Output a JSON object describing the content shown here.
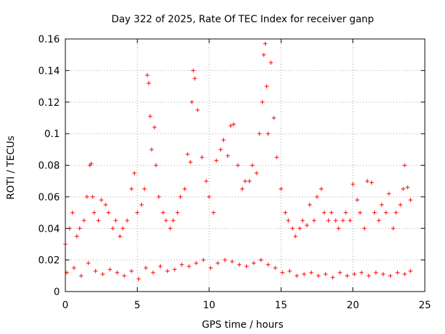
{
  "chart_data": {
    "type": "scatter",
    "title": "Day 322 of 2025, Rate Of TEC Index for receiver ganp",
    "xlabel": "GPS time / hours",
    "ylabel": "ROTI / TECUs",
    "xlim": [
      0,
      25
    ],
    "ylim": [
      0,
      0.16
    ],
    "xticks": [
      0,
      5,
      10,
      15,
      20,
      25
    ],
    "xtick_labels": [
      "0",
      "5",
      "10",
      "15",
      "20",
      "25"
    ],
    "yticks": [
      0,
      0.02,
      0.04,
      0.06,
      0.08,
      0.1,
      0.12,
      0.14,
      0.16
    ],
    "ytick_labels": [
      "0",
      "0.02",
      "0.04",
      "0.06",
      "0.08",
      "0.1",
      "0.12",
      "0.14",
      "0.16"
    ],
    "grid": true,
    "legend": "none",
    "marker": "+",
    "color": "#ff0000",
    "series": [
      {
        "x": [
          0.0,
          0.3,
          0.5,
          0.8,
          1.0,
          1.3,
          1.5,
          1.7,
          1.8,
          1.9,
          2.0,
          2.3,
          2.5,
          2.8,
          3.0,
          3.3,
          3.5,
          3.8,
          4.0,
          4.3,
          4.6,
          4.8,
          5.0,
          5.3,
          5.5,
          5.7,
          5.8,
          5.9,
          6.0,
          6.2,
          6.3,
          6.5,
          6.8,
          7.0,
          7.3,
          7.5,
          7.8,
          8.0,
          8.3,
          8.5,
          8.7,
          8.8,
          8.9,
          9.0,
          9.2,
          9.5,
          9.8,
          10.0,
          10.3,
          10.5,
          10.8,
          11.0,
          11.3,
          11.5,
          11.7,
          12.0,
          12.3,
          12.5,
          12.8,
          13.0,
          13.3,
          13.5,
          13.7,
          13.8,
          13.9,
          14.0,
          14.1,
          14.3,
          14.5,
          14.7,
          15.0,
          15.3,
          15.5,
          15.8,
          16.0,
          16.3,
          16.5,
          16.8,
          17.0,
          17.3,
          17.5,
          17.8,
          18.0,
          18.3,
          18.5,
          18.8,
          19.0,
          19.3,
          19.5,
          19.8,
          20.0,
          20.3,
          20.5,
          20.8,
          21.0,
          21.3,
          21.5,
          21.8,
          22.0,
          22.3,
          22.5,
          22.8,
          23.0,
          23.3,
          23.5,
          23.6,
          23.8,
          24.0
        ],
        "y": [
          0.03,
          0.04,
          0.05,
          0.035,
          0.04,
          0.045,
          0.06,
          0.08,
          0.081,
          0.06,
          0.05,
          0.045,
          0.058,
          0.055,
          0.05,
          0.04,
          0.045,
          0.035,
          0.04,
          0.045,
          0.065,
          0.075,
          0.05,
          0.055,
          0.065,
          0.137,
          0.132,
          0.111,
          0.09,
          0.104,
          0.08,
          0.06,
          0.05,
          0.045,
          0.04,
          0.045,
          0.05,
          0.06,
          0.065,
          0.087,
          0.082,
          0.12,
          0.14,
          0.135,
          0.115,
          0.085,
          0.07,
          0.06,
          0.05,
          0.083,
          0.09,
          0.096,
          0.086,
          0.105,
          0.106,
          0.08,
          0.065,
          0.07,
          0.07,
          0.08,
          0.075,
          0.1,
          0.12,
          0.15,
          0.157,
          0.13,
          0.1,
          0.145,
          0.11,
          0.085,
          0.065,
          0.05,
          0.045,
          0.04,
          0.035,
          0.04,
          0.045,
          0.042,
          0.055,
          0.045,
          0.06,
          0.065,
          0.05,
          0.045,
          0.05,
          0.045,
          0.04,
          0.045,
          0.05,
          0.045,
          0.068,
          0.058,
          0.05,
          0.04,
          0.07,
          0.069,
          0.05,
          0.045,
          0.055,
          0.05,
          0.062,
          0.04,
          0.05,
          0.055,
          0.065,
          0.08,
          0.066,
          0.058
        ]
      },
      {
        "x": [
          0.1,
          0.6,
          1.1,
          1.6,
          2.1,
          2.6,
          3.1,
          3.6,
          4.1,
          4.6,
          5.1,
          5.6,
          6.1,
          6.6,
          7.1,
          7.6,
          8.1,
          8.6,
          9.1,
          9.6,
          10.1,
          10.6,
          11.1,
          11.6,
          12.1,
          12.6,
          13.1,
          13.6,
          14.1,
          14.6,
          15.1,
          15.6,
          16.1,
          16.6,
          17.1,
          17.6,
          18.1,
          18.6,
          19.1,
          19.6,
          20.1,
          20.6,
          21.1,
          21.6,
          22.1,
          22.6,
          23.1,
          23.6,
          24.0
        ],
        "y": [
          0.012,
          0.015,
          0.01,
          0.018,
          0.013,
          0.011,
          0.014,
          0.012,
          0.01,
          0.013,
          0.008,
          0.015,
          0.012,
          0.016,
          0.013,
          0.014,
          0.017,
          0.016,
          0.018,
          0.02,
          0.015,
          0.018,
          0.02,
          0.019,
          0.017,
          0.016,
          0.018,
          0.02,
          0.017,
          0.015,
          0.012,
          0.013,
          0.01,
          0.011,
          0.012,
          0.01,
          0.011,
          0.009,
          0.012,
          0.01,
          0.011,
          0.012,
          0.01,
          0.012,
          0.011,
          0.01,
          0.012,
          0.011,
          0.013
        ]
      }
    ]
  }
}
